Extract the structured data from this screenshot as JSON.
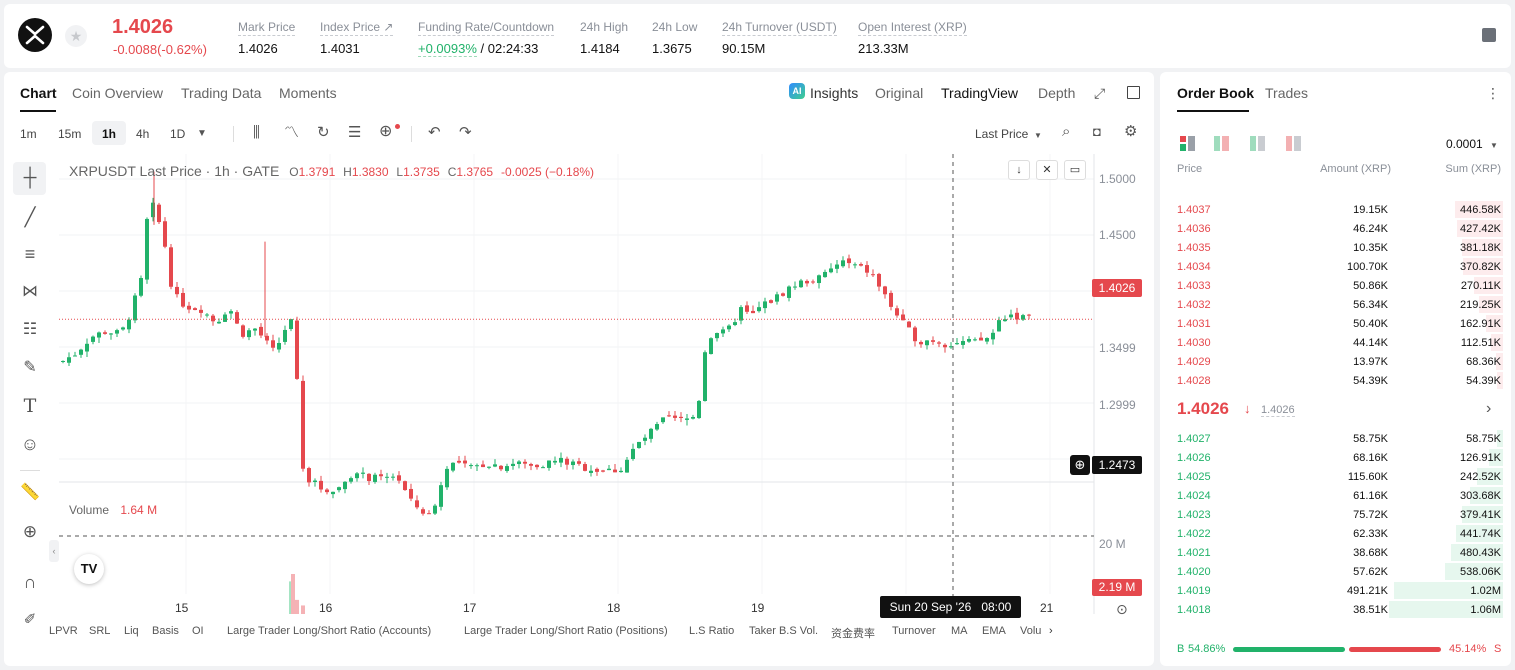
{
  "header": {
    "logo_icon": "xrp-logo-icon",
    "price": "1.4026",
    "change": "-0.0088(-0.62%)",
    "stats": [
      {
        "label": "Mark Price",
        "value": "1.4026"
      },
      {
        "label": "Index Price ↗",
        "value": "1.4031"
      },
      {
        "label": "Funding Rate/Countdown",
        "value_green": "+0.0093%",
        "value": " / 02:24:33"
      },
      {
        "label": "24h High",
        "value": "1.4184"
      },
      {
        "label": "24h Low",
        "value": "1.3675"
      },
      {
        "label": "24h Turnover (USDT)",
        "value": "90.15M"
      },
      {
        "label": "Open Interest (XRP)",
        "value": "213.33M"
      }
    ]
  },
  "chart_tabs": [
    "Chart",
    "Coin Overview",
    "Trading Data",
    "Moments"
  ],
  "view_tabs": {
    "insights": "Insights",
    "original": "Original",
    "tradingview": "TradingView",
    "depth": "Depth"
  },
  "intervals": [
    "1m",
    "15m",
    "1h",
    "4h",
    "1D"
  ],
  "price_type": "Last Price",
  "legend": {
    "symbol": "XRPUSDT Last Price · 1h · GATE",
    "o_lbl": "O",
    "o": "1.3791",
    "h_lbl": "H",
    "h": "1.3830",
    "l_lbl": "L",
    "l": "1.3735",
    "c_lbl": "C",
    "c": "1.3765",
    "chg": "-0.0025 (−0.18%)"
  },
  "volume": {
    "label": "Volume",
    "value": "1.64 M",
    "axis_label": "20 M",
    "current_tag": "2.19 M"
  },
  "price_axis": [
    "1.5000",
    "1.4500",
    "1.3499",
    "1.2999"
  ],
  "current_price_tag": "1.4026",
  "crosshair_price_tag": "1.2473",
  "time_axis": [
    "15",
    "16",
    "17",
    "18",
    "19",
    "21"
  ],
  "crosshair_time": "Sun 20 Sep '26   08:00",
  "bottom_tabs": [
    "LPVR",
    "SRL",
    "Liq",
    "Basis",
    "OI",
    "Large Trader Long/Short Ratio (Accounts)",
    "Large Trader Long/Short Ratio (Positions)",
    "L.S Ratio",
    "Taker B.S Vol.",
    "资金费率",
    "Turnover",
    "MA",
    "EMA",
    "Volu"
  ],
  "chart_data": {
    "type": "candlestick",
    "title": "XRPUSDT Last Price · 1h · GATE",
    "ylim": [
      1.235,
      1.512
    ],
    "x_range": [
      "15",
      "21"
    ],
    "yticks": [
      1.5,
      1.45,
      1.3499,
      1.2999
    ],
    "current_price": 1.4026,
    "colors": {
      "up": "#21b26a",
      "down": "#e5484d"
    }
  },
  "order_book": {
    "tabs": [
      "Order Book",
      "Trades"
    ],
    "precision": "0.0001",
    "headers": [
      "Price",
      "Amount (XRP)",
      "Sum (XRP)"
    ],
    "asks": [
      [
        "1.4037",
        "19.15K",
        "446.58K"
      ],
      [
        "1.4036",
        "46.24K",
        "427.42K"
      ],
      [
        "1.4035",
        "10.35K",
        "381.18K"
      ],
      [
        "1.4034",
        "100.70K",
        "370.82K"
      ],
      [
        "1.4033",
        "50.86K",
        "270.11K"
      ],
      [
        "1.4032",
        "56.34K",
        "219.25K"
      ],
      [
        "1.4031",
        "50.40K",
        "162.91K"
      ],
      [
        "1.4030",
        "44.14K",
        "112.51K"
      ],
      [
        "1.4029",
        "13.97K",
        "68.36K"
      ],
      [
        "1.4028",
        "54.39K",
        "54.39K"
      ]
    ],
    "mid_price": "1.4026",
    "mid_mark": "1.4026",
    "bids": [
      [
        "1.4027",
        "58.75K",
        "58.75K"
      ],
      [
        "1.4026",
        "68.16K",
        "126.91K"
      ],
      [
        "1.4025",
        "115.60K",
        "242.52K"
      ],
      [
        "1.4024",
        "61.16K",
        "303.68K"
      ],
      [
        "1.4023",
        "75.72K",
        "379.41K"
      ],
      [
        "1.4022",
        "62.33K",
        "441.74K"
      ],
      [
        "1.4021",
        "38.68K",
        "480.43K"
      ],
      [
        "1.4020",
        "57.62K",
        "538.06K"
      ],
      [
        "1.4019",
        "491.21K",
        "1.02M"
      ],
      [
        "1.4018",
        "38.51K",
        "1.06M"
      ]
    ],
    "buy_ratio": "54.86%",
    "sell_ratio": "45.14%",
    "buy_label": "B",
    "sell_label": "S",
    "buy_fraction": 0.5486
  }
}
